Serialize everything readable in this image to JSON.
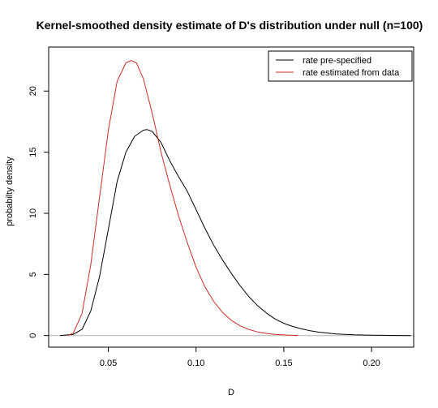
{
  "chart_data": {
    "type": "line",
    "title": "Kernel-smoothed density estimate of D's distribution under null (n=100)",
    "xlabel": "D",
    "ylabel": "probabilty density",
    "xlim": [
      0.016,
      0.224
    ],
    "ylim": [
      -0.95,
      23.6
    ],
    "xticks": [
      0.05,
      0.1,
      0.15,
      0.2
    ],
    "xtick_labels": [
      "0.05",
      "0.10",
      "0.15",
      "0.20"
    ],
    "yticks": [
      0,
      5,
      10,
      15,
      20
    ],
    "ytick_labels": [
      "0",
      "5",
      "10",
      "15",
      "20"
    ],
    "grid": false,
    "baseline": 0,
    "legend_placement": "top-right",
    "colors": {
      "baseline": "#c8c8c8",
      "axis": "#000000"
    },
    "series": [
      {
        "name": "rate pre-specified",
        "color": "#000000",
        "x": [
          0.0225,
          0.03,
          0.035,
          0.04,
          0.045,
          0.05,
          0.055,
          0.06,
          0.065,
          0.07,
          0.072,
          0.075,
          0.08,
          0.085,
          0.09,
          0.095,
          0.1,
          0.105,
          0.11,
          0.115,
          0.12,
          0.125,
          0.13,
          0.135,
          0.14,
          0.145,
          0.15,
          0.155,
          0.16,
          0.165,
          0.17,
          0.18,
          0.19,
          0.2,
          0.21,
          0.2225
        ],
        "y": [
          0,
          0.1,
          0.5,
          2.0,
          4.8,
          8.7,
          12.6,
          15.0,
          16.3,
          16.8,
          16.85,
          16.7,
          15.8,
          14.3,
          13.0,
          11.8,
          10.3,
          8.8,
          7.4,
          6.2,
          5.1,
          4.1,
          3.2,
          2.45,
          1.85,
          1.35,
          1.0,
          0.75,
          0.55,
          0.4,
          0.28,
          0.13,
          0.06,
          0.03,
          0.01,
          0
        ]
      },
      {
        "name": "rate estimated from data",
        "color": "#d22a2a",
        "x": [
          0.027,
          0.03,
          0.035,
          0.04,
          0.045,
          0.05,
          0.055,
          0.06,
          0.063,
          0.066,
          0.07,
          0.075,
          0.08,
          0.085,
          0.09,
          0.095,
          0.1,
          0.105,
          0.11,
          0.115,
          0.12,
          0.125,
          0.13,
          0.135,
          0.14,
          0.145,
          0.15,
          0.155,
          0.158
        ],
        "y": [
          0,
          0.2,
          1.8,
          5.8,
          11.3,
          16.8,
          20.8,
          22.3,
          22.5,
          22.3,
          21.0,
          18.2,
          15.0,
          12.3,
          9.8,
          7.6,
          5.6,
          4.0,
          2.8,
          1.9,
          1.25,
          0.8,
          0.5,
          0.3,
          0.18,
          0.1,
          0.05,
          0.02,
          0
        ]
      }
    ]
  }
}
